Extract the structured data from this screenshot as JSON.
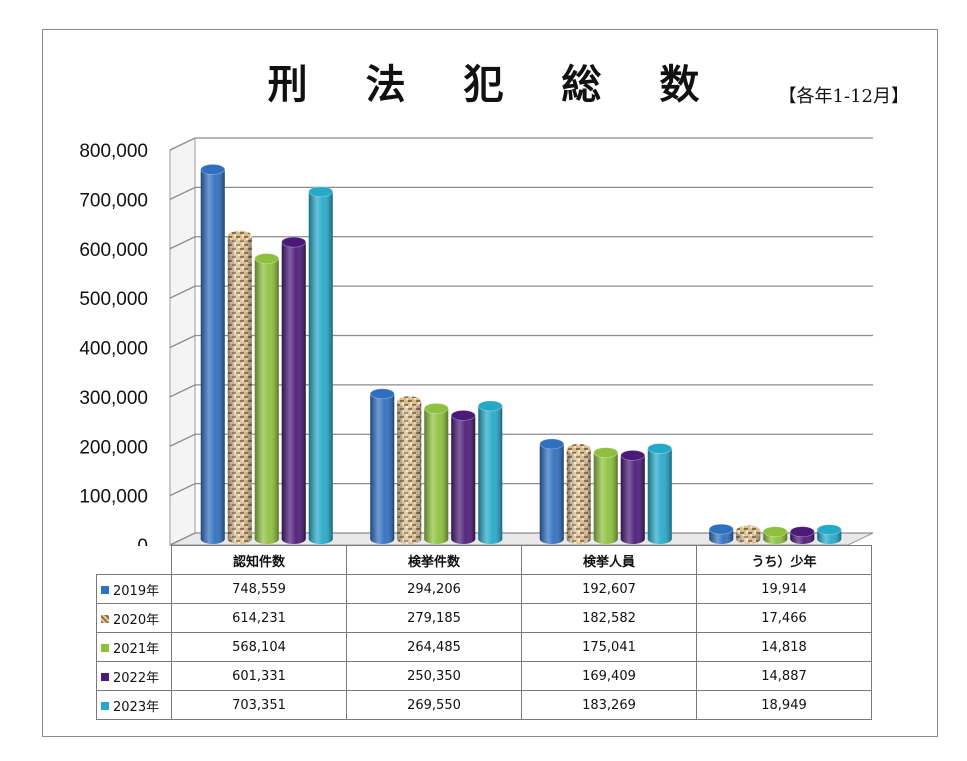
{
  "title": "刑 法 犯 総 数",
  "subtitle": "【各年1-12月】",
  "chart_data": {
    "type": "bar",
    "title": "刑 法 犯 総 数",
    "categories": [
      "認知件数",
      "検挙件数",
      "検挙人員",
      "うち）少年"
    ],
    "ylim": [
      0,
      800000
    ],
    "yticks": [
      "0",
      "100,000",
      "200,000",
      "300,000",
      "400,000",
      "500,000",
      "600,000",
      "700,000",
      "800,000"
    ],
    "grid": true,
    "legend": "table-below",
    "series": [
      {
        "name": "2019年",
        "color": "#2f6fbf",
        "values": [
          748559,
          294206,
          192607,
          19914
        ],
        "labels": [
          "748,559",
          "294,206",
          "192,607",
          "19,914"
        ]
      },
      {
        "name": "2020年",
        "color": "#c9a77a",
        "values": [
          614231,
          279185,
          182582,
          17466
        ],
        "labels": [
          "614,231",
          "279,185",
          "182,582",
          "17,466"
        ]
      },
      {
        "name": "2021年",
        "color": "#8dc03c",
        "values": [
          568104,
          264485,
          175041,
          14818
        ],
        "labels": [
          "568,104",
          "264,485",
          "175,041",
          "14,818"
        ]
      },
      {
        "name": "2022年",
        "color": "#4b1a78",
        "values": [
          601331,
          250350,
          169409,
          14887
        ],
        "labels": [
          "601,331",
          "250,350",
          "169,409",
          "14,887"
        ]
      },
      {
        "name": "2023年",
        "color": "#25a9c9",
        "values": [
          703351,
          269550,
          183269,
          18949
        ],
        "labels": [
          "703,351",
          "269,550",
          "183,269",
          "18,949"
        ]
      }
    ]
  }
}
